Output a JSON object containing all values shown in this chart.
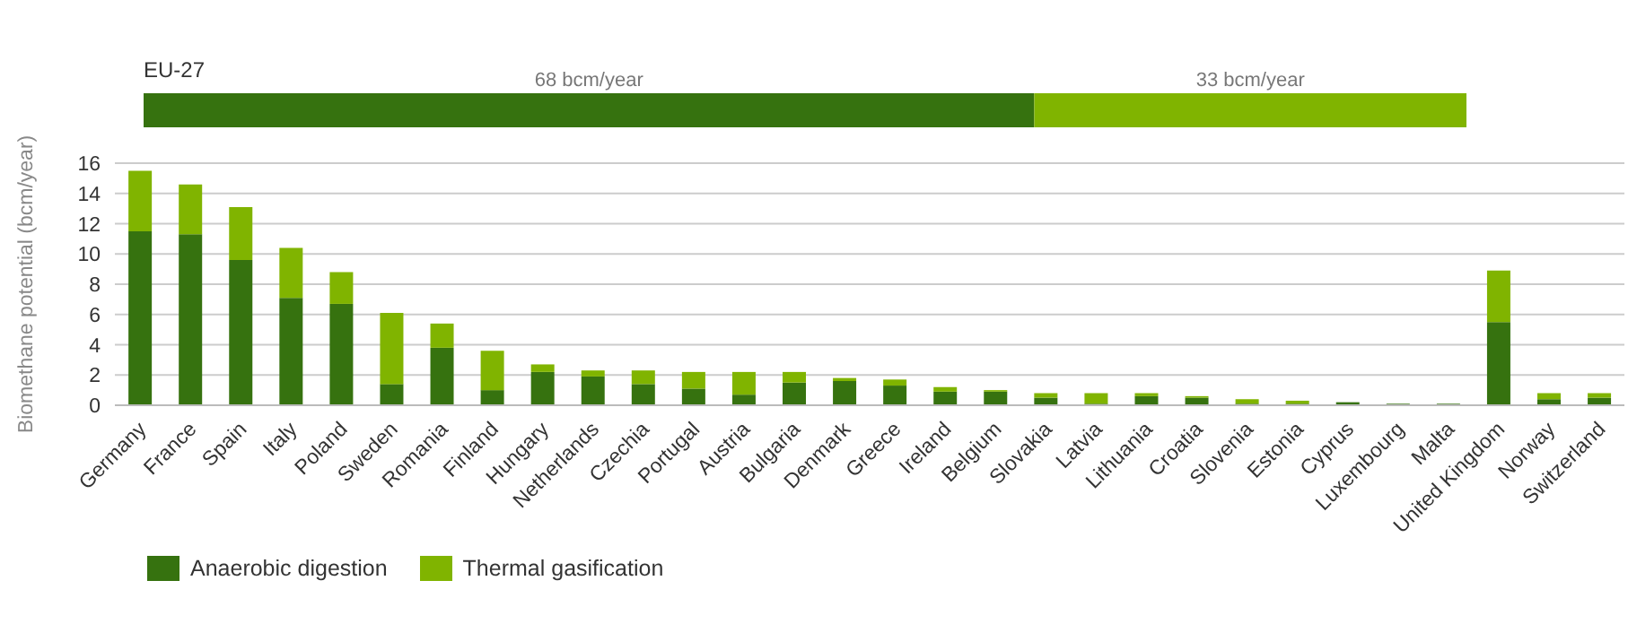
{
  "chart_data": [
    {
      "type": "bar",
      "orientation": "horizontal",
      "stacked": true,
      "categories": [
        "EU-27"
      ],
      "series": [
        {
          "color": "#36720f",
          "values": [
            68
          ],
          "value_labels": [
            "68 bcm/year"
          ]
        },
        {
          "color": "#80b400",
          "values": [
            33
          ],
          "value_labels": [
            "33 bcm/year"
          ]
        }
      ]
    },
    {
      "type": "bar",
      "stacked": true,
      "ylabel": "Biomethane potential (bcm/year)",
      "ylim": [
        0,
        16
      ],
      "yticks": [
        0,
        2,
        4,
        6,
        8,
        10,
        12,
        14,
        16
      ],
      "grid": "y",
      "legend": "bottom left",
      "categories": [
        "Germany",
        "France",
        "Spain",
        "Italy",
        "Poland",
        "Sweden",
        "Romania",
        "Finland",
        "Hungary",
        "Netherlands",
        "Czechia",
        "Portugal",
        "Austria",
        "Bulgaria",
        "Denmark",
        "Greece",
        "Ireland",
        "Belgium",
        "Slovakia",
        "Latvia",
        "Lithuania",
        "Croatia",
        "Slovenia",
        "Estonia",
        "Cyprus",
        "Luxembourg",
        "Malta",
        "United Kingdom",
        "Norway",
        "Switzerland"
      ],
      "series": [
        {
          "name": "Anaerobic digestion",
          "color": "#36720f",
          "values": [
            11.5,
            11.3,
            9.6,
            7.1,
            6.7,
            1.4,
            3.8,
            1.0,
            2.2,
            1.9,
            1.4,
            1.1,
            0.7,
            1.5,
            1.6,
            1.3,
            0.9,
            0.9,
            0.5,
            0.1,
            0.6,
            0.5,
            0.1,
            0.1,
            0.2,
            0.1,
            0.1,
            5.5,
            0.4,
            0.5
          ]
        },
        {
          "name": "Thermal gasification",
          "color": "#80b400",
          "values": [
            4.0,
            3.3,
            3.5,
            3.3,
            2.1,
            4.7,
            1.6,
            2.6,
            0.5,
            0.4,
            0.9,
            1.1,
            1.5,
            0.7,
            0.2,
            0.4,
            0.3,
            0.1,
            0.3,
            0.7,
            0.2,
            0.1,
            0.3,
            0.2,
            0,
            0,
            0,
            3.4,
            0.4,
            0.3
          ]
        }
      ]
    }
  ]
}
